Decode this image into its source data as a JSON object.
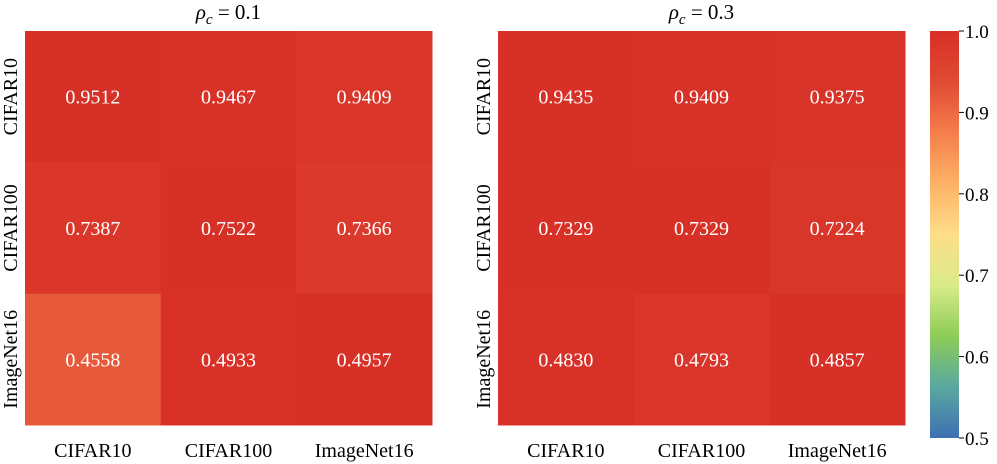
{
  "chart_data": [
    {
      "type": "heatmap",
      "title": "ρc = 0.1",
      "x_categories": [
        "CIFAR10",
        "CIFAR100",
        "ImageNet16"
      ],
      "y_categories": [
        "CIFAR10",
        "CIFAR100",
        "ImageNet16"
      ],
      "values": [
        [
          0.9512,
          0.9467,
          0.9409
        ],
        [
          0.7387,
          0.7522,
          0.7366
        ],
        [
          0.4558,
          0.4933,
          0.4957
        ]
      ],
      "value_labels": [
        [
          "0.9512",
          "0.9467",
          "0.9409"
        ],
        [
          "0.7387",
          "0.7522",
          "0.7366"
        ],
        [
          "0.4558",
          "0.4933",
          "0.4957"
        ]
      ],
      "row_max_normalized_colors": true
    },
    {
      "type": "heatmap",
      "title": "ρc = 0.3",
      "x_categories": [
        "CIFAR10",
        "CIFAR100",
        "ImageNet16"
      ],
      "y_categories": [
        "CIFAR10",
        "CIFAR100",
        "ImageNet16"
      ],
      "values": [
        [
          0.9435,
          0.9409,
          0.9375
        ],
        [
          0.7329,
          0.7329,
          0.7224
        ],
        [
          0.483,
          0.4793,
          0.4857
        ]
      ],
      "value_labels": [
        [
          "0.9435",
          "0.9409",
          "0.9375"
        ],
        [
          "0.7329",
          "0.7329",
          "0.7224"
        ],
        [
          "0.4830",
          "0.4793",
          "0.4857"
        ]
      ],
      "row_max_normalized_colors": true
    }
  ],
  "colorbar": {
    "range": [
      0.5,
      1.0
    ],
    "ticks": [
      0.5,
      0.6,
      0.7,
      0.8,
      0.9,
      1.0
    ],
    "tick_labels": [
      "0.5",
      "0.6",
      "0.7",
      "0.8",
      "0.9",
      "1.0"
    ],
    "colormap": "RdYlBu_r-like",
    "stops": [
      "#3f6fb2",
      "#5aa8a0",
      "#8ccc57",
      "#d9eb8a",
      "#fedd8a",
      "#fdb265",
      "#f57e4c",
      "#e04a33",
      "#d73027"
    ]
  }
}
